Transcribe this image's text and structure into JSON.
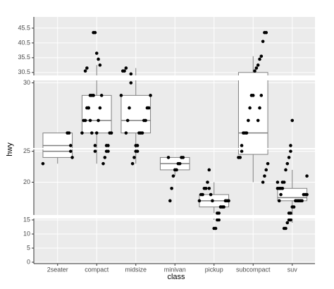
{
  "chart_data": {
    "type": "boxplot",
    "x_label": "class",
    "y_label": "hwy",
    "categories": [
      "2seater",
      "compact",
      "midsize",
      "minivan",
      "pickup",
      "subcompact",
      "suv"
    ],
    "panels": [
      {
        "ylim": [
          29.5,
          49.3
        ],
        "yticks": [
          30.5,
          35.5,
          40.5,
          45.5
        ]
      },
      {
        "ylim": [
          24.8,
          30.2
        ],
        "yticks": [
          30
        ]
      },
      {
        "ylim": [
          14.7,
          25.3
        ],
        "yticks": [
          20,
          25
        ]
      },
      {
        "ylim": [
          -0.5,
          15.5
        ],
        "yticks": [
          0,
          5,
          10,
          15
        ]
      }
    ],
    "boxes": [
      {
        "min": 23,
        "q1": 24,
        "median": 25,
        "q3": 26,
        "max": 26
      },
      {
        "min": 23,
        "q1": 26,
        "median": 27,
        "q3": 29,
        "max": 33
      },
      {
        "min": 23,
        "q1": 26,
        "median": 27,
        "q3": 29,
        "max": 32
      },
      {
        "min": 21,
        "q1": 22,
        "median": 23,
        "q3": 24,
        "max": 24
      },
      {
        "min": 15,
        "q1": 16,
        "median": 17,
        "q3": 18,
        "max": 20
      },
      {
        "min": 20,
        "q1": 24.5,
        "median": 26,
        "q3": 30.5,
        "max": 36
      },
      {
        "min": 14,
        "q1": 17,
        "median": 17.5,
        "q3": 19,
        "max": 22
      }
    ],
    "points": [
      [
        23,
        24,
        25,
        26,
        26
      ],
      [
        33,
        35,
        37,
        44,
        44,
        29,
        29,
        28,
        28,
        27,
        27,
        26,
        26,
        26,
        25,
        25,
        24,
        23,
        29,
        28,
        27,
        26,
        25,
        29,
        26,
        27,
        28,
        32,
        31
      ],
      [
        32,
        31,
        31,
        29,
        29,
        28,
        28,
        27,
        27,
        26,
        26,
        26,
        25,
        25,
        24,
        23,
        30,
        28,
        27,
        26
      ],
      [
        24,
        24,
        23,
        23,
        22,
        22,
        21,
        19,
        17,
        24
      ],
      [
        22,
        20,
        19,
        19,
        18,
        18,
        17,
        17,
        17,
        17,
        16,
        16,
        16,
        15,
        15,
        12,
        12,
        17,
        18,
        19
      ],
      [
        44,
        44,
        41,
        36,
        35,
        33,
        32,
        31,
        29,
        29,
        28,
        27,
        26,
        26,
        26,
        25,
        24,
        24,
        23,
        22,
        21,
        20,
        29,
        28,
        27
      ],
      [
        27,
        25,
        24,
        23,
        22,
        20,
        20,
        19,
        19,
        19,
        18,
        18,
        18,
        17,
        17,
        17,
        17,
        17,
        16,
        16,
        15,
        15,
        14,
        12,
        12,
        19,
        18,
        17,
        20,
        21
      ]
    ],
    "point_color": "#000000",
    "box_color": "#7f7f7f",
    "grid": true
  }
}
